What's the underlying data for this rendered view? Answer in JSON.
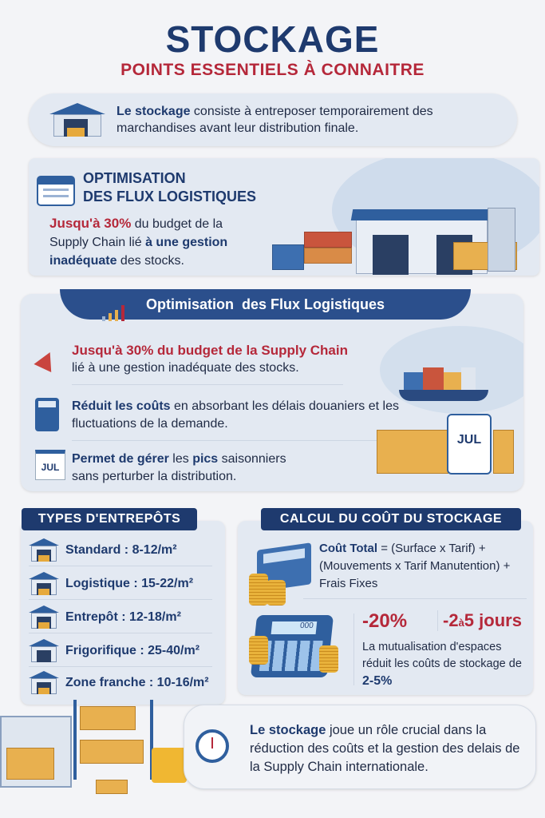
{
  "header": {
    "title": "STOCKAGE",
    "subtitle": "POINTS ESSENTIELS À CONNAITRE"
  },
  "intro": {
    "bold": "Le stockage",
    "text": " consiste à entreposer temporairement des marchandises avant leur distribution finale."
  },
  "optim_card": {
    "title_line1": "OPTIMISATION",
    "title_line2": "DES FLUX LOGISTIQUES",
    "red": "Jusqu'à 30%",
    "text1": " du budget de la Supply Chain lié ",
    "bold": "à une gestion inadéquate",
    "text2": " des stocks."
  },
  "flux": {
    "banner": "Optimisation  des Flux Logistiques",
    "item1": {
      "red": "Jusqu'à 30% du budget de la Supply Chain",
      "text": "lié à une gestion inadéquate des stocks."
    },
    "item2": {
      "bold": "Réduit les coûts",
      "text": " en absorbant les délais douaniers et les fluctuations de la demande."
    },
    "item3": {
      "bold1": "Permet de gérer",
      "text1": " les ",
      "bold2": "pics",
      "text2": " saisonniers sans perturber la distribution."
    },
    "calendar_month": "JUL"
  },
  "types": {
    "title": "TYPES D'ENTREPÔTS",
    "items": [
      "Standard : 8-12/m²",
      "Logistique : 15-22/m²",
      "Entrepôt : 12-18/m²",
      "Frigorifique : 25-40/m²",
      "Zone franche : 10-16/m²"
    ]
  },
  "calcul": {
    "title": "CALCUL DU COÛT DU STOCKAGE",
    "formula_bold": "Coût Total",
    "formula": " = (Surface x Tarif) + (Mouvements x Tarif Manutention) + Frais Fixes",
    "stat1": "-20%",
    "stat2_a": "-2",
    "stat2_b": "à",
    "stat2_c": "5 jours",
    "calc_display": "000",
    "desc": "La mutualisation d'espaces réduit les coûts de stockage de ",
    "desc_bold": "2-5%"
  },
  "footer": {
    "bold": "Le stockage",
    "text": " joue un rôle crucial dans la réduction des coûts et la gestion des delais de la Supply Chain internationale."
  },
  "colors": {
    "navy": "#1e3a6e",
    "red": "#b5283a",
    "panel": "#e3e9f2",
    "gold": "#e8b04f"
  }
}
